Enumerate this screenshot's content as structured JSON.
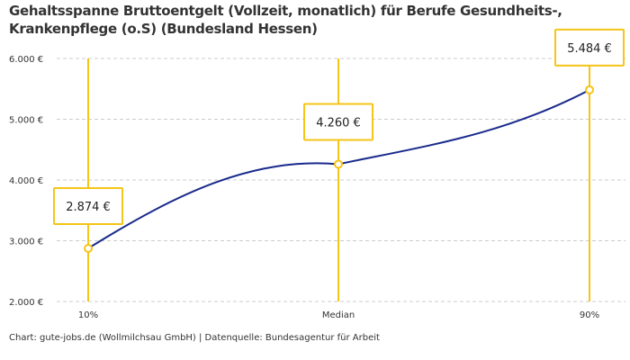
{
  "chart_data": {
    "type": "line",
    "title_lines": [
      "Gehaltsspanne Bruttoentgelt (Vollzeit, monatlich) für Berufe Gesundheits-,",
      "Krankenpflege (o.S) (Bundesland Hessen)"
    ],
    "categories": [
      "10%",
      "Median",
      "90%"
    ],
    "values": [
      2874,
      4260,
      5484
    ],
    "data_labels": [
      "2.874 €",
      "4.260 €",
      "5.484 €"
    ],
    "y_ticks": [
      2000,
      3000,
      4000,
      5000,
      6000
    ],
    "y_tick_labels": [
      "2.000 €",
      "3.000 €",
      "4.000 €",
      "5.000 €",
      "6.000 €"
    ],
    "ylim": [
      2000,
      6000
    ],
    "grid": true,
    "colors": {
      "line": "#1a2a8c",
      "accent": "#f5c518",
      "grid": "#cccccc"
    }
  },
  "source": "Chart: gute-jobs.de (Wollmilchsau GmbH) | Datenquelle: Bundesagentur für Arbeit"
}
